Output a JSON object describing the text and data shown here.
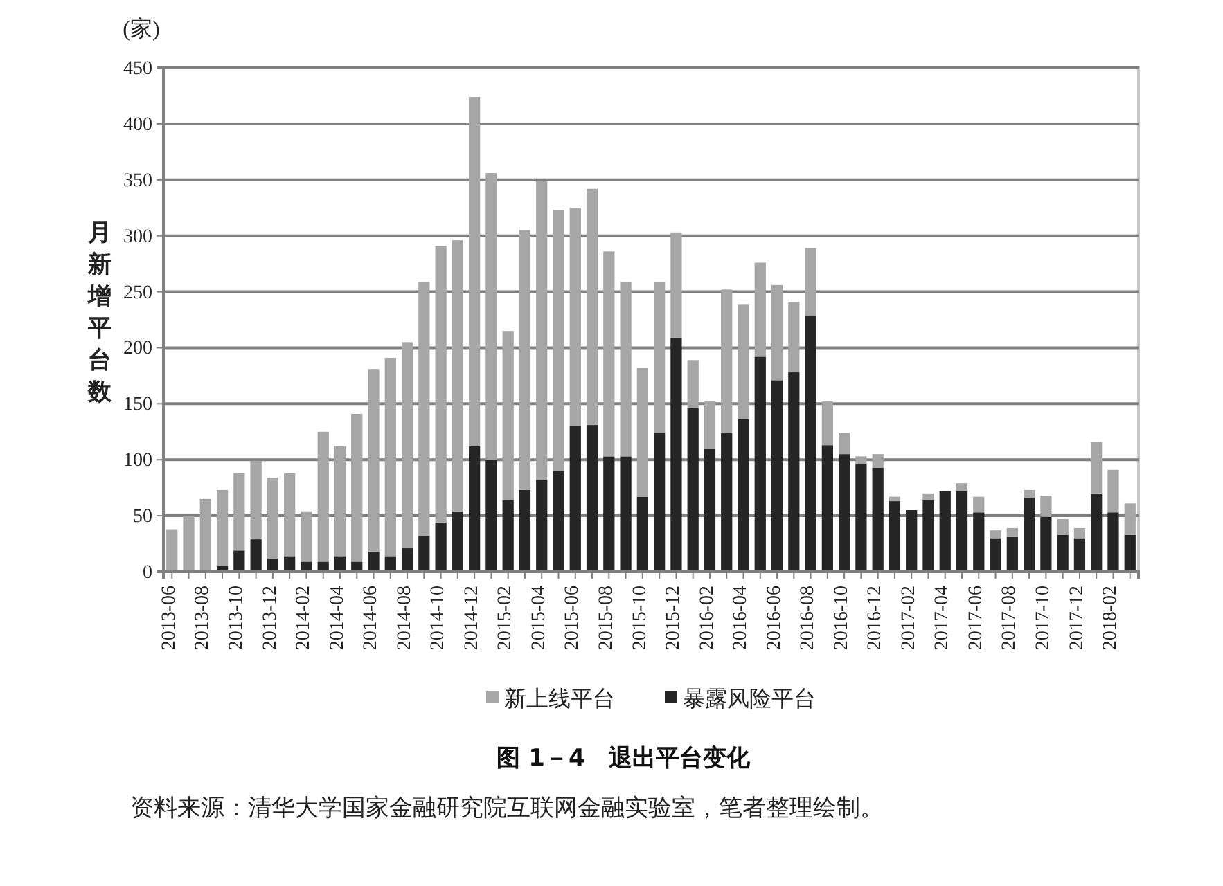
{
  "chart_data": {
    "type": "bar",
    "stacked": true,
    "title": "图 1－4　退出平台变化",
    "ylabel": "月新增平台数",
    "annotations": [
      "(家)",
      "资料来源：清华大学国家金融研究院互联网金融实验室，笔者整理绘制。"
    ],
    "categories": [
      "2013-06",
      null,
      "2013-08",
      null,
      "2013-10",
      null,
      "2013-12",
      null,
      "2014-02",
      null,
      "2014-04",
      null,
      "2014-06",
      null,
      "2014-08",
      null,
      "2014-10",
      null,
      "2014-12",
      null,
      "2015-02",
      null,
      "2015-04",
      null,
      "2015-06",
      null,
      "2015-08",
      null,
      "2015-10",
      null,
      "2015-12",
      null,
      "2016-02",
      null,
      "2016-04",
      null,
      "2016-06",
      null,
      "2016-08",
      null,
      "2016-10",
      null,
      "2016-12",
      null,
      "2017-02",
      null,
      "2017-04",
      null,
      "2017-06",
      null,
      "2017-08",
      null,
      "2017-10",
      null,
      "2017-12",
      null,
      "2018-02",
      null
    ],
    "series": [
      {
        "name": "暴露风险平台",
        "color": "#262626",
        "values": [
          0,
          0,
          0,
          5,
          19,
          29,
          12,
          14,
          9,
          9,
          14,
          9,
          18,
          14,
          21,
          32,
          44,
          54,
          112,
          100,
          64,
          73,
          82,
          90,
          130,
          131,
          103,
          103,
          67,
          124,
          209,
          146,
          110,
          124,
          136,
          192,
          171,
          178,
          229,
          113,
          105,
          96,
          93,
          63,
          55,
          64,
          72,
          72,
          53,
          30,
          31,
          66,
          49,
          33,
          30,
          70,
          53,
          33
        ]
      },
      {
        "name": "新上线平台",
        "color": "#a6a6a6",
        "values": [
          38,
          50,
          65,
          68,
          69,
          70,
          72,
          74,
          45,
          116,
          98,
          132,
          163,
          177,
          184,
          227,
          247,
          242,
          312,
          256,
          151,
          232,
          267,
          233,
          195,
          211,
          183,
          156,
          115,
          135,
          94,
          43,
          42,
          128,
          103,
          84,
          85,
          63,
          60,
          39,
          19,
          7,
          12,
          4,
          null,
          6,
          null,
          7,
          14,
          7,
          8,
          7,
          19,
          14,
          9,
          46,
          38,
          28
        ]
      }
    ],
    "ylim": [
      0,
      450
    ],
    "yticks": [
      0,
      50,
      100,
      150,
      200,
      250,
      300,
      350,
      400,
      450
    ],
    "grid": "y",
    "legend": "bottom"
  }
}
